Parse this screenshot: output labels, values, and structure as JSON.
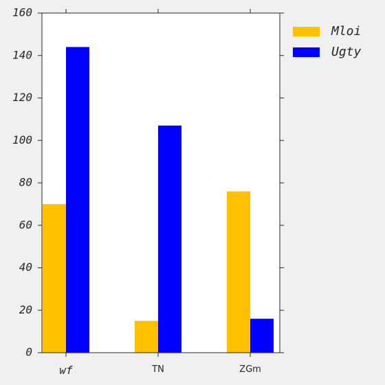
{
  "chart_data": {
    "type": "bar",
    "categories": [
      "wf",
      "TN",
      "ZGm"
    ],
    "series": [
      {
        "name": "Mloi",
        "color": "#FFC000",
        "values": [
          70,
          15,
          76
        ]
      },
      {
        "name": "Ugty",
        "color": "#0000FF",
        "values": [
          144,
          107,
          16
        ]
      }
    ],
    "ylim": [
      0,
      160
    ],
    "yticks": [
      0,
      20,
      40,
      60,
      80,
      100,
      120,
      140,
      160
    ],
    "grid": false,
    "legend_position": "top-right-outside",
    "background": "#f0f0f0",
    "plot_background": "#ffffff"
  }
}
